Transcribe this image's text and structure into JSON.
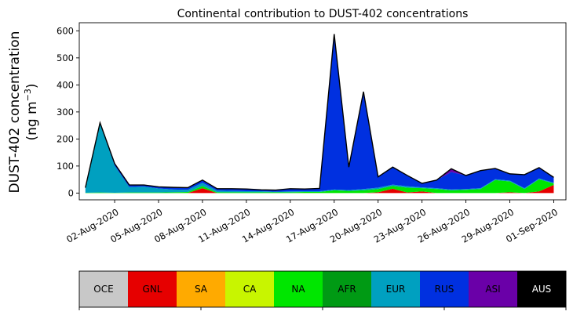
{
  "chart_data": {
    "type": "area",
    "stacked": true,
    "title": "Continental contribution to DUST-402 concentrations",
    "ylabel_line1": "DUST-402 concentration",
    "ylabel_line2_prefix": "(ng m",
    "ylabel_line2_sup": "−3",
    "ylabel_line2_suffix": ")",
    "ylim": [
      -25,
      630
    ],
    "yticks": [
      0,
      100,
      200,
      300,
      400,
      500,
      600
    ],
    "x_start": "2020-07-31",
    "x_end": "2020-09-01",
    "xlim": [
      "2020-07-30T14:00",
      "2020-09-01T20:00"
    ],
    "xticks": [
      "02-Aug-2020",
      "05-Aug-2020",
      "08-Aug-2020",
      "11-Aug-2020",
      "14-Aug-2020",
      "17-Aug-2020",
      "20-Aug-2020",
      "23-Aug-2020",
      "26-Aug-2020",
      "29-Aug-2020",
      "01-Sep-2020"
    ],
    "x_dates": [
      "2020-07-31",
      "2020-08-01",
      "2020-08-02",
      "2020-08-03",
      "2020-08-04",
      "2020-08-05",
      "2020-08-06",
      "2020-08-07",
      "2020-08-08",
      "2020-08-09",
      "2020-08-10",
      "2020-08-11",
      "2020-08-12",
      "2020-08-13",
      "2020-08-14",
      "2020-08-15",
      "2020-08-16",
      "2020-08-17",
      "2020-08-18",
      "2020-08-19",
      "2020-08-20",
      "2020-08-21",
      "2020-08-22",
      "2020-08-23",
      "2020-08-24",
      "2020-08-25",
      "2020-08-26",
      "2020-08-27",
      "2020-08-28",
      "2020-08-29",
      "2020-08-30",
      "2020-08-31",
      "2020-09-01"
    ],
    "series": [
      {
        "name": "GNL",
        "color": "#e60000",
        "values": [
          0,
          0,
          0,
          0,
          0,
          0,
          0,
          0,
          18,
          0,
          0,
          0,
          0,
          0,
          0,
          0,
          0,
          0,
          0,
          0,
          3,
          16,
          2,
          6,
          0,
          0,
          0,
          0,
          0,
          3,
          0,
          6,
          30
        ]
      },
      {
        "name": "NA",
        "color": "#00e600",
        "values": [
          1,
          2,
          1,
          2,
          2,
          2,
          3,
          4,
          8,
          3,
          3,
          3,
          3,
          3,
          3,
          4,
          4,
          10,
          8,
          10,
          12,
          10,
          18,
          12,
          15,
          10,
          12,
          15,
          48,
          40,
          15,
          45,
          5
        ]
      },
      {
        "name": "EUR",
        "color": "#00a0c0",
        "values": [
          15,
          255,
          100,
          20,
          22,
          15,
          10,
          8,
          12,
          6,
          5,
          4,
          4,
          2,
          3,
          3,
          3,
          3,
          3,
          5,
          5,
          5,
          5,
          3,
          3,
          3,
          3,
          3,
          3,
          3,
          3,
          3,
          3
        ]
      },
      {
        "name": "RUS",
        "color": "#0030e0",
        "values": [
          4,
          3,
          8,
          8,
          6,
          6,
          8,
          8,
          10,
          7,
          8,
          8,
          5,
          6,
          10,
          8,
          10,
          575,
          85,
          360,
          40,
          65,
          40,
          15,
          30,
          65,
          50,
          65,
          40,
          25,
          50,
          40,
          20
        ]
      },
      {
        "name": "ASI",
        "color": "#6a00a8",
        "values": [
          0,
          0,
          0,
          0,
          0,
          0,
          0,
          0,
          0,
          0,
          0,
          0,
          0,
          0,
          0,
          0,
          0,
          0,
          0,
          0,
          0,
          0,
          0,
          0,
          0,
          12,
          0,
          0,
          0,
          0,
          0,
          0,
          0
        ]
      }
    ],
    "total_line_color": "#000000"
  },
  "legend": {
    "items": [
      {
        "label": "OCE",
        "color": "#c8c8c8",
        "text_color": "#000000"
      },
      {
        "label": "GNL",
        "color": "#e60000",
        "text_color": "#000000"
      },
      {
        "label": "SA",
        "color": "#ffaa00",
        "text_color": "#000000"
      },
      {
        "label": "CA",
        "color": "#c8f500",
        "text_color": "#000000"
      },
      {
        "label": "NA",
        "color": "#00e600",
        "text_color": "#000000"
      },
      {
        "label": "AFR",
        "color": "#009a14",
        "text_color": "#000000"
      },
      {
        "label": "EUR",
        "color": "#00a0c0",
        "text_color": "#000000"
      },
      {
        "label": "RUS",
        "color": "#0030e0",
        "text_color": "#000000"
      },
      {
        "label": "ASI",
        "color": "#6a00a8",
        "text_color": "#000000"
      },
      {
        "label": "AUS",
        "color": "#000000",
        "text_color": "#ffffff"
      }
    ]
  }
}
